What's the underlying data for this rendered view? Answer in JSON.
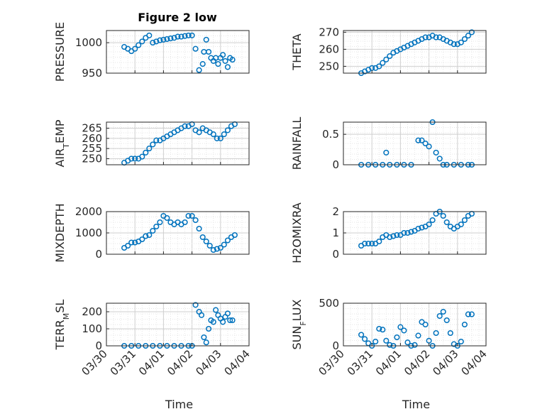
{
  "figure_title": "Figure 2 low",
  "x_tick_labels": [
    "03/30",
    "03/31",
    "04/01",
    "04/02",
    "04/03",
    "04/04"
  ],
  "x_label": "Time",
  "colors": {
    "marker": "#0072bd",
    "axes": "#262626",
    "grid": "#d9d9d9",
    "background": "#ffffff"
  },
  "chart_data": [
    {
      "type": "scatter",
      "title": "Figure 2 low",
      "ylabel": "PRESSURE",
      "ylim": [
        950,
        1020
      ],
      "yticks": [
        950,
        1000
      ],
      "xlabel": "",
      "xlim": [
        "03/30",
        "04/04"
      ],
      "grid": true,
      "x": [
        "03/30 15:00",
        "03/30 18:00",
        "03/30 21:00",
        "03/31 00:00",
        "03/31 03:00",
        "03/31 06:00",
        "03/31 09:00",
        "03/31 12:00",
        "03/31 15:00",
        "03/31 18:00",
        "03/31 21:00",
        "04/01 00:00",
        "04/01 03:00",
        "04/01 06:00",
        "04/01 09:00",
        "04/01 12:00",
        "04/01 15:00",
        "04/01 18:00",
        "04/01 21:00",
        "04/02 00:00",
        "04/02 03:00",
        "04/02 06:00",
        "04/02 09:00",
        "04/02 10:00",
        "04/02 12:00",
        "04/02 14:00",
        "04/02 16:00",
        "04/02 18:00",
        "04/02 20:00",
        "04/02 22:00",
        "04/03 00:00",
        "04/03 02:00",
        "04/03 04:00",
        "04/03 06:00",
        "04/03 08:00",
        "04/03 10:00"
      ],
      "y": [
        993,
        990,
        986,
        990,
        996,
        1002,
        1008,
        1012,
        1000,
        1002,
        1004,
        1005,
        1006,
        1007,
        1008,
        1010,
        1010,
        1011,
        1012,
        1012,
        990,
        955,
        965,
        985,
        1005,
        985,
        975,
        970,
        975,
        965,
        975,
        980,
        970,
        960,
        975,
        972
      ]
    },
    {
      "type": "scatter",
      "ylabel": "THETA",
      "ylim": [
        246,
        271
      ],
      "yticks": [
        250,
        260,
        270
      ],
      "xlabel": "",
      "xlim": [
        "03/30",
        "04/04"
      ],
      "grid": true,
      "x": [
        "03/30 15:00",
        "03/30 18:00",
        "03/30 21:00",
        "03/31 00:00",
        "03/31 03:00",
        "03/31 06:00",
        "03/31 09:00",
        "03/31 12:00",
        "03/31 15:00",
        "03/31 18:00",
        "03/31 21:00",
        "04/01 00:00",
        "04/01 03:00",
        "04/01 06:00",
        "04/01 09:00",
        "04/01 12:00",
        "04/01 15:00",
        "04/01 18:00",
        "04/01 21:00",
        "04/02 00:00",
        "04/02 03:00",
        "04/02 06:00",
        "04/02 09:00",
        "04/02 12:00",
        "04/02 15:00",
        "04/02 18:00",
        "04/02 21:00",
        "04/03 00:00",
        "04/03 03:00",
        "04/03 06:00",
        "04/03 09:00",
        "04/03 12:00"
      ],
      "y": [
        246,
        247,
        248,
        249,
        249,
        250,
        252,
        254,
        256,
        258,
        259,
        260,
        261,
        262,
        263,
        264,
        265,
        266,
        267,
        267,
        268,
        267,
        267,
        266,
        265,
        264,
        263,
        263,
        264,
        266,
        268,
        270
      ]
    },
    {
      "type": "scatter",
      "ylabel": "AIR_TEMP",
      "ylim": [
        247,
        268
      ],
      "yticks": [
        250,
        255,
        260,
        265
      ],
      "xlabel": "",
      "xlim": [
        "03/30",
        "04/04"
      ],
      "grid": true,
      "x": [
        "03/30 15:00",
        "03/30 18:00",
        "03/30 21:00",
        "03/31 00:00",
        "03/31 03:00",
        "03/31 06:00",
        "03/31 09:00",
        "03/31 12:00",
        "03/31 15:00",
        "03/31 18:00",
        "03/31 21:00",
        "04/01 00:00",
        "04/01 03:00",
        "04/01 06:00",
        "04/01 09:00",
        "04/01 12:00",
        "04/01 15:00",
        "04/01 18:00",
        "04/01 21:00",
        "04/02 00:00",
        "04/02 03:00",
        "04/02 06:00",
        "04/02 09:00",
        "04/02 12:00",
        "04/02 15:00",
        "04/02 18:00",
        "04/02 21:00",
        "04/03 00:00",
        "04/03 03:00",
        "04/03 06:00",
        "04/03 09:00",
        "04/03 12:00"
      ],
      "y": [
        248,
        249,
        250,
        250,
        250,
        251,
        253,
        255,
        257,
        259,
        259,
        260,
        261,
        262,
        263,
        264,
        265,
        266,
        266,
        267,
        264,
        263,
        265,
        264,
        263,
        262,
        260,
        260,
        262,
        264,
        266,
        267
      ]
    },
    {
      "type": "scatter",
      "ylabel": "RAINFALL",
      "ylim": [
        0,
        0.7
      ],
      "yticks": [
        0,
        0.5
      ],
      "xlabel": "",
      "xlim": [
        "03/30",
        "04/04"
      ],
      "grid": true,
      "x": [
        "03/30 15:00",
        "03/30 21:00",
        "03/31 03:00",
        "03/31 09:00",
        "03/31 12:00",
        "03/31 15:00",
        "03/31 21:00",
        "04/01 03:00",
        "04/01 09:00",
        "04/01 15:00",
        "04/01 18:00",
        "04/01 21:00",
        "04/02 00:00",
        "04/02 03:00",
        "04/02 06:00",
        "04/02 09:00",
        "04/02 12:00",
        "04/02 15:00",
        "04/02 21:00",
        "04/03 03:00",
        "04/03 09:00",
        "04/03 12:00"
      ],
      "y": [
        0,
        0,
        0,
        0,
        0.2,
        0,
        0,
        0,
        0,
        0.4,
        0.4,
        0.35,
        0.3,
        0.7,
        0.2,
        0.1,
        0,
        0,
        0,
        0,
        0,
        0
      ]
    },
    {
      "type": "scatter",
      "ylabel": "MIXDEPTH",
      "ylim": [
        0,
        2000
      ],
      "yticks": [
        0,
        1000,
        2000
      ],
      "xlabel": "",
      "xlim": [
        "03/30",
        "04/04"
      ],
      "grid": true,
      "x": [
        "03/30 15:00",
        "03/30 18:00",
        "03/30 21:00",
        "03/31 00:00",
        "03/31 03:00",
        "03/31 06:00",
        "03/31 09:00",
        "03/31 12:00",
        "03/31 15:00",
        "03/31 18:00",
        "03/31 21:00",
        "04/01 00:00",
        "04/01 03:00",
        "04/01 06:00",
        "04/01 09:00",
        "04/01 12:00",
        "04/01 15:00",
        "04/01 18:00",
        "04/01 21:00",
        "04/02 00:00",
        "04/02 03:00",
        "04/02 06:00",
        "04/02 09:00",
        "04/02 12:00",
        "04/02 15:00",
        "04/02 18:00",
        "04/02 21:00",
        "04/03 00:00",
        "04/03 03:00",
        "04/03 06:00",
        "04/03 09:00",
        "04/03 12:00"
      ],
      "y": [
        300,
        400,
        550,
        550,
        600,
        700,
        850,
        900,
        1100,
        1300,
        1500,
        1800,
        1700,
        1500,
        1400,
        1500,
        1400,
        1500,
        1800,
        1800,
        1600,
        1200,
        800,
        600,
        400,
        200,
        250,
        300,
        450,
        650,
        800,
        900
      ]
    },
    {
      "type": "scatter",
      "ylabel": "H2OMIXRA",
      "ylim": [
        0,
        2
      ],
      "yticks": [
        0,
        1,
        2
      ],
      "xlabel": "",
      "xlim": [
        "03/30",
        "04/04"
      ],
      "grid": true,
      "x": [
        "03/30 15:00",
        "03/30 18:00",
        "03/30 21:00",
        "03/31 00:00",
        "03/31 03:00",
        "03/31 06:00",
        "03/31 09:00",
        "03/31 12:00",
        "03/31 15:00",
        "03/31 18:00",
        "03/31 21:00",
        "04/01 00:00",
        "04/01 03:00",
        "04/01 06:00",
        "04/01 09:00",
        "04/01 12:00",
        "04/01 15:00",
        "04/01 18:00",
        "04/01 21:00",
        "04/02 00:00",
        "04/02 03:00",
        "04/02 06:00",
        "04/02 09:00",
        "04/02 12:00",
        "04/02 15:00",
        "04/02 18:00",
        "04/02 21:00",
        "04/03 00:00",
        "04/03 03:00",
        "04/03 06:00",
        "04/03 09:00",
        "04/03 12:00"
      ],
      "y": [
        0.4,
        0.5,
        0.5,
        0.5,
        0.5,
        0.6,
        0.8,
        0.9,
        0.8,
        0.85,
        0.9,
        0.9,
        1.0,
        1.0,
        1.05,
        1.1,
        1.2,
        1.25,
        1.3,
        1.4,
        1.6,
        1.9,
        2.0,
        1.8,
        1.5,
        1.3,
        1.2,
        1.3,
        1.4,
        1.6,
        1.8,
        1.9
      ]
    },
    {
      "type": "scatter",
      "ylabel": "TERR_MSL",
      "ylim": [
        0,
        250
      ],
      "yticks": [
        0,
        100,
        200
      ],
      "xlabel": "Time",
      "xlim": [
        "03/30",
        "04/04"
      ],
      "grid": true,
      "x": [
        "03/30 15:00",
        "03/30 21:00",
        "03/31 03:00",
        "03/31 09:00",
        "03/31 15:00",
        "03/31 21:00",
        "04/01 03:00",
        "04/01 09:00",
        "04/01 15:00",
        "04/01 21:00",
        "04/02 00:00",
        "04/02 03:00",
        "04/02 06:00",
        "04/02 08:00",
        "04/02 10:00",
        "04/02 12:00",
        "04/02 14:00",
        "04/02 16:00",
        "04/02 18:00",
        "04/02 20:00",
        "04/02 22:00",
        "04/03 00:00",
        "04/03 02:00",
        "04/03 04:00",
        "04/03 06:00",
        "04/03 08:00",
        "04/03 10:00"
      ],
      "y": [
        0,
        0,
        0,
        0,
        0,
        0,
        0,
        0,
        0,
        0,
        0,
        240,
        200,
        180,
        50,
        20,
        100,
        150,
        140,
        210,
        180,
        160,
        140,
        170,
        190,
        150,
        150
      ]
    },
    {
      "type": "scatter",
      "ylabel": "SUN_FLUX",
      "ylim": [
        0,
        500
      ],
      "yticks": [
        0,
        500
      ],
      "xlabel": "Time",
      "xlim": [
        "03/30",
        "04/04"
      ],
      "grid": true,
      "x": [
        "03/30 15:00",
        "03/30 18:00",
        "03/30 21:00",
        "03/31 00:00",
        "03/31 03:00",
        "03/31 06:00",
        "03/31 09:00",
        "03/31 12:00",
        "03/31 15:00",
        "03/31 18:00",
        "03/31 21:00",
        "04/01 00:00",
        "04/01 03:00",
        "04/01 06:00",
        "04/01 09:00",
        "04/01 12:00",
        "04/01 15:00",
        "04/01 18:00",
        "04/01 21:00",
        "04/02 00:00",
        "04/02 03:00",
        "04/02 06:00",
        "04/02 09:00",
        "04/02 12:00",
        "04/02 15:00",
        "04/02 18:00",
        "04/02 21:00",
        "04/03 00:00",
        "04/03 03:00",
        "04/03 06:00",
        "04/03 09:00",
        "04/03 12:00"
      ],
      "y": [
        130,
        80,
        30,
        0,
        50,
        200,
        190,
        60,
        10,
        0,
        100,
        220,
        180,
        40,
        0,
        10,
        120,
        280,
        250,
        60,
        0,
        150,
        350,
        400,
        300,
        150,
        20,
        0,
        50,
        250,
        370,
        370
      ]
    }
  ]
}
